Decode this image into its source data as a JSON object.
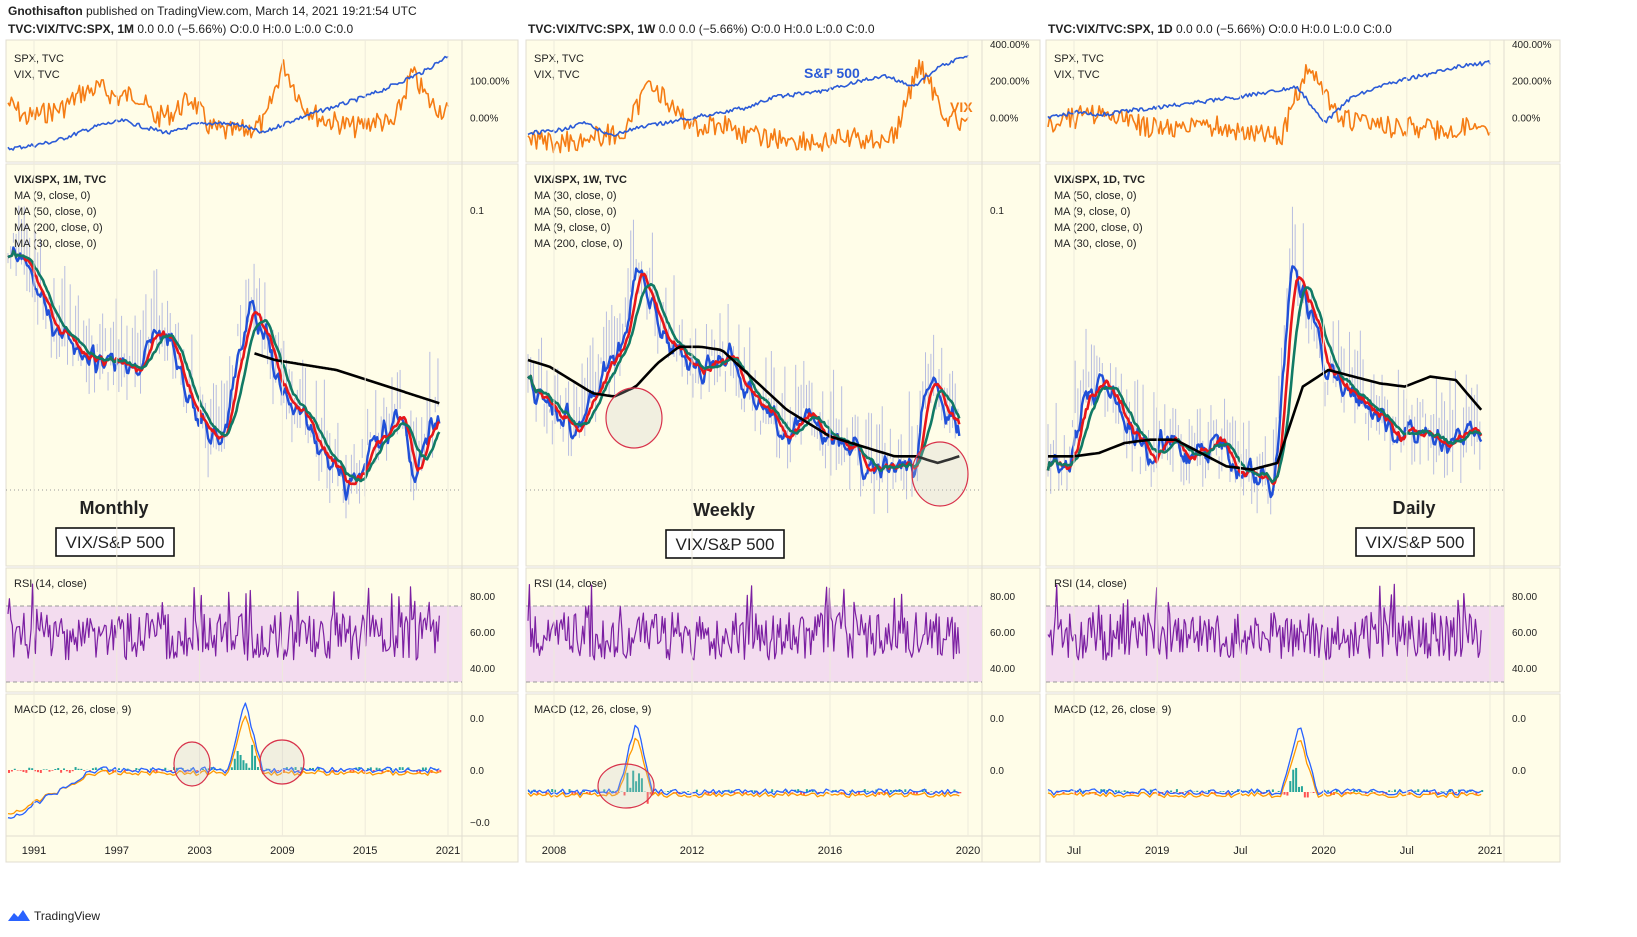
{
  "header": {
    "author": "Gnothisafton",
    "published": "published on TradingView.com, March 14, 2021 19:21:54 UTC"
  },
  "brand": {
    "label": "TradingView",
    "icon": "tradingview-logo-icon"
  },
  "colors": {
    "spx": "#2b5bd7",
    "vix": "#f57c14",
    "ratio": "#2050d8",
    "ma_red": "#e8171a",
    "ma_green": "#117a65",
    "ma_black": "#000000",
    "rsi": "#7b1fa2",
    "rsi_band": "#f3dcef",
    "pane_bg": "#fffde8",
    "circle": "#d8324b"
  },
  "chart_data": [
    {
      "panel": "monthly",
      "title": "TVC:VIX/TVC:SPX, 1M",
      "ohlc": "0.0 0.0 (−5.66%) O:0.0 H:0.0 L:0.0 C:0.0",
      "x_ticks": [
        "1991",
        "1997",
        "2003",
        "2009",
        "2015",
        "2021"
      ],
      "panes": {
        "compare": {
          "type": "line",
          "legend": [
            "SPX, TVC",
            "VIX, TVC"
          ],
          "y_ticks": [
            "100.00%",
            "0.00%"
          ]
        },
        "ratio": {
          "type": "line",
          "legend": [
            "VIX/SPX, 1M, TVC",
            "MA (9, close, 0)",
            "MA (50, close, 0)",
            "MA (200, close, 0)",
            "MA (30, close, 0)"
          ],
          "y_ticks": [
            "0.1"
          ],
          "label": "Monthly",
          "badge": "VIX/S&P 500"
        },
        "rsi": {
          "type": "line",
          "legend": [
            "RSI (14, close)"
          ],
          "y_ticks": [
            "80.00",
            "60.00",
            "40.00"
          ]
        },
        "macd": {
          "type": "bar",
          "legend": [
            "MACD (12, 26, close, 9)"
          ],
          "y_ticks": [
            "0.0",
            "0.0",
            "−0.0"
          ]
        }
      }
    },
    {
      "panel": "weekly",
      "title": "TVC:VIX/TVC:SPX, 1W",
      "ohlc": "0.0 0.0 (−5.66%) O:0.0 H:0.0 L:0.0 C:0.0",
      "x_ticks": [
        "2008",
        "2012",
        "2016",
        "2020"
      ],
      "panes": {
        "compare": {
          "type": "line",
          "legend": [
            "SPX, TVC",
            "VIX, TVC"
          ],
          "y_ticks": [
            "400.00%",
            "200.00%",
            "0.00%"
          ],
          "annotations": [
            "S&P 500",
            "VIX"
          ]
        },
        "ratio": {
          "type": "line",
          "legend": [
            "VIX/SPX, 1W, TVC",
            "MA (30, close, 0)",
            "MA (50, close, 0)",
            "MA (9, close, 0)",
            "MA (200, close, 0)"
          ],
          "y_ticks": [
            "0.1"
          ],
          "label": "Weekly",
          "badge": "VIX/S&P 500"
        },
        "rsi": {
          "type": "line",
          "legend": [
            "RSI (14, close)"
          ],
          "y_ticks": [
            "80.00",
            "60.00",
            "40.00"
          ]
        },
        "macd": {
          "type": "bar",
          "legend": [
            "MACD (12, 26, close, 9)"
          ],
          "y_ticks": [
            "0.0",
            "0.0"
          ]
        }
      }
    },
    {
      "panel": "daily",
      "title": "TVC:VIX/TVC:SPX, 1D",
      "ohlc": "0.0 0.0 (−5.66%) O:0.0 H:0.0 L:0.0 C:0.0",
      "x_ticks": [
        "Jul",
        "2019",
        "Jul",
        "2020",
        "Jul",
        "2021"
      ],
      "panes": {
        "compare": {
          "type": "line",
          "legend": [
            "SPX, TVC",
            "VIX, TVC"
          ],
          "y_ticks": [
            "400.00%",
            "200.00%",
            "0.00%"
          ]
        },
        "ratio": {
          "type": "line",
          "legend": [
            "VIX/SPX, 1D, TVC",
            "MA (50, close, 0)",
            "MA (9, close, 0)",
            "MA (200, close, 0)",
            "MA (30, close, 0)"
          ],
          "y_ticks": [],
          "label": "Daily",
          "badge": "VIX/S&P 500"
        },
        "rsi": {
          "type": "line",
          "legend": [
            "RSI (14, close)"
          ],
          "y_ticks": [
            "80.00",
            "60.00",
            "40.00"
          ]
        },
        "macd": {
          "type": "bar",
          "legend": [
            "MACD (12, 26, close, 9)"
          ],
          "y_ticks": [
            "0.0",
            "0.0"
          ]
        }
      }
    }
  ]
}
